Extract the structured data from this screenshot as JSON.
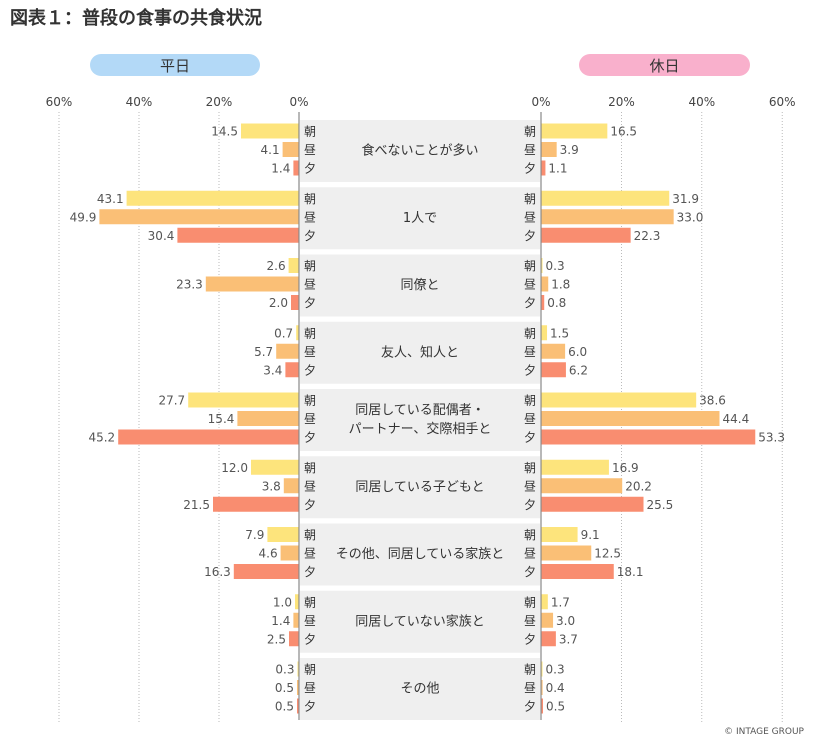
{
  "title": "図表１：普段の食事の共食状況",
  "credit": "© INTAGE GROUP",
  "chart_data": {
    "type": "bar",
    "orientation": "horizontal-butterfly",
    "panels": [
      {
        "name": "平日",
        "label_color": "#b3d9f7",
        "direction": "left",
        "ticks": [
          "60%",
          "40%",
          "20%",
          "0%"
        ]
      },
      {
        "name": "休日",
        "label_color": "#f9b0cc",
        "direction": "right",
        "ticks": [
          "0%",
          "20%",
          "40%",
          "60%"
        ]
      }
    ],
    "xlim": [
      0,
      60
    ],
    "meal_labels": [
      "朝",
      "昼",
      "夕"
    ],
    "meal_colors": [
      "#fde47c",
      "#fabf76",
      "#f98d70"
    ],
    "categories": [
      {
        "label": [
          "食べないことが多い"
        ],
        "weekday": [
          14.5,
          4.1,
          1.4
        ],
        "holiday": [
          16.5,
          3.9,
          1.1
        ]
      },
      {
        "label": [
          "1人で"
        ],
        "weekday": [
          43.1,
          49.9,
          30.4
        ],
        "holiday": [
          31.9,
          33.0,
          22.3
        ]
      },
      {
        "label": [
          "同僚と"
        ],
        "weekday": [
          2.6,
          23.3,
          2.0
        ],
        "holiday": [
          0.3,
          1.8,
          0.8
        ]
      },
      {
        "label": [
          "友人、知人と"
        ],
        "weekday": [
          0.7,
          5.7,
          3.4
        ],
        "holiday": [
          1.5,
          6.0,
          6.2
        ]
      },
      {
        "label": [
          "同居している配偶者・",
          "パートナー、交際相手と"
        ],
        "weekday": [
          27.7,
          15.4,
          45.2
        ],
        "holiday": [
          38.6,
          44.4,
          53.3
        ]
      },
      {
        "label": [
          "同居している子どもと"
        ],
        "weekday": [
          12.0,
          3.8,
          21.5
        ],
        "holiday": [
          16.9,
          20.2,
          25.5
        ]
      },
      {
        "label": [
          "その他、同居している家族と"
        ],
        "weekday": [
          7.9,
          4.6,
          16.3
        ],
        "holiday": [
          9.1,
          12.5,
          18.1
        ]
      },
      {
        "label": [
          "同居していない家族と"
        ],
        "weekday": [
          1.0,
          1.4,
          2.5
        ],
        "holiday": [
          1.7,
          3.0,
          3.7
        ]
      },
      {
        "label": [
          "その他"
        ],
        "weekday": [
          0.3,
          0.5,
          0.5
        ],
        "holiday": [
          0.3,
          0.4,
          0.5
        ]
      }
    ]
  }
}
